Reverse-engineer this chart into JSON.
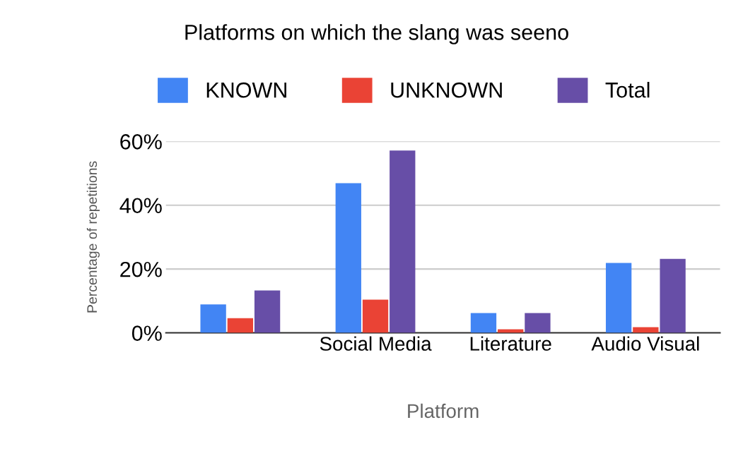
{
  "chart_data": {
    "type": "bar",
    "title": "Platforms on which the slang was seeno",
    "xlabel": "Platform",
    "ylabel": "Percentage of repetitions",
    "categories": [
      null,
      "Social Media",
      "Literature",
      "Audio Visual"
    ],
    "series": [
      {
        "name": "KNOWN",
        "color": "#4285f4",
        "values": [
          8.9,
          46.9,
          6.2,
          21.9
        ]
      },
      {
        "name": "UNKNOWN",
        "color": "#ea4335",
        "values": [
          4.6,
          10.4,
          1.1,
          1.8
        ]
      },
      {
        "name": "Total",
        "color": "#674ea7",
        "values": [
          13.3,
          57.1,
          6.2,
          23.2
        ]
      }
    ],
    "ylim": [
      0,
      60
    ],
    "yticks": [
      {
        "value": 0,
        "label": "0%"
      },
      {
        "value": 20,
        "label": "20%"
      },
      {
        "value": 40,
        "label": "40%"
      },
      {
        "value": 60,
        "label": "60%"
      }
    ],
    "grid": "y",
    "legend": "top"
  }
}
